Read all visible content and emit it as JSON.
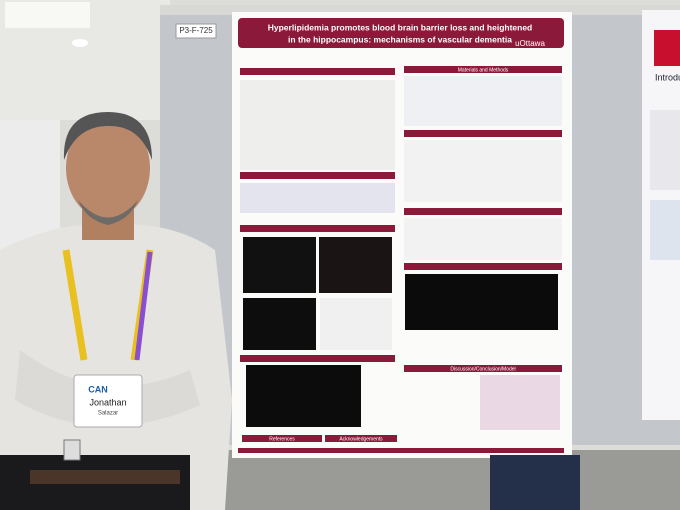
{
  "board": {
    "id": "P3-F-725"
  },
  "poster": {
    "title": "Hyperlipidemia promotes blood brain barrier loss and heightened",
    "subtitle": "in the hippocampus: mechanisms of vascular dementia",
    "logo": "uOttawa",
    "sections": [
      "Materials and Methods",
      "Discussion/Conclusion/Model",
      "References",
      "Acknowledgements"
    ]
  },
  "neighbor_poster": {
    "heading": "Introduct"
  },
  "badge": {
    "brand": "CAN",
    "first_name": "Jonathan",
    "last_name": "Salazar"
  }
}
